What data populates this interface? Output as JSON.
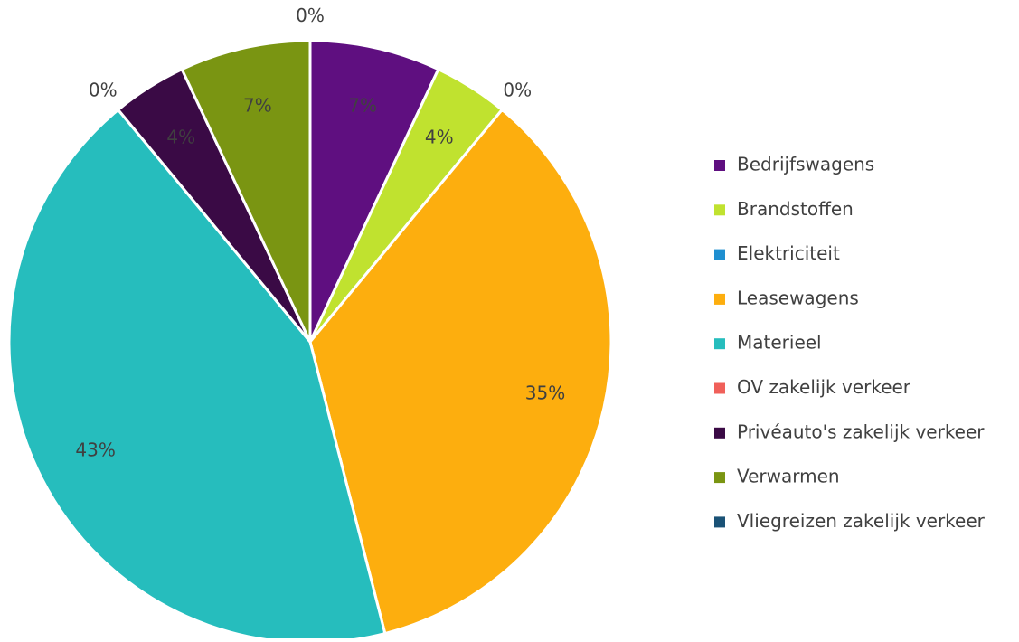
{
  "chart_data": {
    "type": "pie",
    "categories": [
      "Bedrijfswagens",
      "Brandstoffen",
      "Elektriciteit",
      "Leasewagens",
      "Materieel",
      "OV zakelijk verkeer",
      "Privéauto's zakelijk verkeer",
      "Verwarmen",
      "Vliegreizen zakelijk verkeer"
    ],
    "values": [
      7,
      4,
      0,
      35,
      43,
      0,
      4,
      7,
      0
    ],
    "value_labels": [
      "7%",
      "4%",
      "0%",
      "35%",
      "43%",
      "0%",
      "4%",
      "7%",
      "0%"
    ],
    "colors": [
      "#5f0f80",
      "#c0e22f",
      "#1f8fd0",
      "#fdae0e",
      "#26bdbd",
      "#f0605a",
      "#3a0a45",
      "#7a9512",
      "#1a5276"
    ],
    "legend": "right"
  }
}
